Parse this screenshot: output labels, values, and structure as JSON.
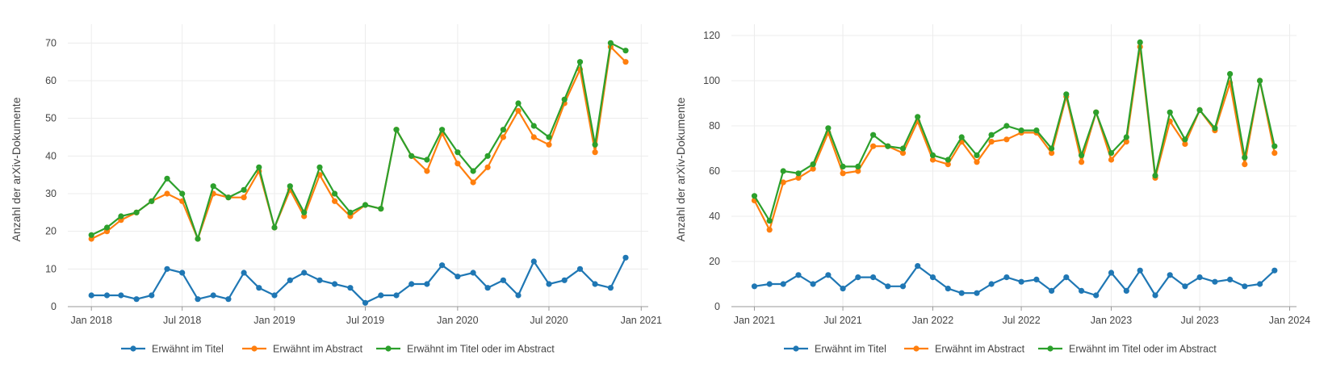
{
  "chart_data": [
    {
      "type": "line",
      "ylabel": "Anzahl der arXiv-Dokumente",
      "xlabel": "",
      "ylim": [
        0,
        75
      ],
      "yticks": [
        0,
        10,
        20,
        30,
        40,
        50,
        60,
        70
      ],
      "x_range": [
        "2017-11-15",
        "2021-01-15"
      ],
      "xtick_dates": [
        "2018-01-01",
        "2018-07-01",
        "2019-01-01",
        "2019-07-01",
        "2020-01-01",
        "2020-07-01",
        "2021-01-01"
      ],
      "xtick_labels": [
        "Jan 2018",
        "Jul 2018",
        "Jan 2019",
        "Jul 2019",
        "Jan 2020",
        "Jul 2020",
        "Jan 2021"
      ],
      "x": [
        "2018-01",
        "2018-02",
        "2018-03",
        "2018-04",
        "2018-05",
        "2018-06",
        "2018-07",
        "2018-08",
        "2018-09",
        "2018-10",
        "2018-11",
        "2018-12",
        "2019-01",
        "2019-02",
        "2019-03",
        "2019-04",
        "2019-05",
        "2019-06",
        "2019-07",
        "2019-08",
        "2019-09",
        "2019-10",
        "2019-11",
        "2019-12",
        "2020-01",
        "2020-02",
        "2020-03",
        "2020-04",
        "2020-05",
        "2020-06",
        "2020-07",
        "2020-08",
        "2020-09",
        "2020-10",
        "2020-11",
        "2020-12"
      ],
      "legend_position": "bottom",
      "grid": true,
      "series": [
        {
          "name": "Erwähnt im Titel",
          "color": "#1f77b4",
          "values": [
            3,
            3,
            3,
            2,
            3,
            10,
            9,
            2,
            3,
            2,
            9,
            5,
            3,
            7,
            9,
            7,
            6,
            5,
            1,
            3,
            3,
            6,
            6,
            11,
            8,
            9,
            5,
            7,
            3,
            12,
            6,
            7,
            10,
            6,
            5,
            13
          ]
        },
        {
          "name": "Erwähnt im Abstract",
          "color": "#ff7f0e",
          "values": [
            18,
            20,
            23,
            25,
            28,
            30,
            28,
            18,
            30,
            29,
            29,
            36,
            21,
            31,
            24,
            35,
            28,
            24,
            27,
            26,
            47,
            40,
            36,
            46,
            38,
            33,
            37,
            45,
            52,
            45,
            43,
            54,
            63,
            41,
            69,
            65
          ]
        },
        {
          "name": "Erwähnt im Titel oder im Abstract",
          "color": "#2ca02c",
          "values": [
            19,
            21,
            24,
            25,
            28,
            34,
            30,
            18,
            32,
            29,
            31,
            37,
            21,
            32,
            25,
            37,
            30,
            25,
            27,
            26,
            47,
            40,
            39,
            47,
            41,
            36,
            40,
            47,
            54,
            48,
            45,
            55,
            65,
            43,
            70,
            68
          ]
        }
      ]
    },
    {
      "type": "line",
      "ylabel": "Anzahl der arXiv-Dokumente",
      "xlabel": "",
      "ylim": [
        0,
        125
      ],
      "yticks": [
        0,
        20,
        40,
        60,
        80,
        100,
        120
      ],
      "x_range": [
        "2020-11-15",
        "2024-01-15"
      ],
      "xtick_dates": [
        "2021-01-01",
        "2021-07-01",
        "2022-01-01",
        "2022-07-01",
        "2023-01-01",
        "2023-07-01",
        "2024-01-01"
      ],
      "xtick_labels": [
        "Jan 2021",
        "Jul 2021",
        "Jan 2022",
        "Jul 2022",
        "Jan 2023",
        "Jul 2023",
        "Jan 2024"
      ],
      "x": [
        "2021-01",
        "2021-02",
        "2021-03",
        "2021-04",
        "2021-05",
        "2021-06",
        "2021-07",
        "2021-08",
        "2021-09",
        "2021-10",
        "2021-11",
        "2021-12",
        "2022-01",
        "2022-02",
        "2022-03",
        "2022-04",
        "2022-05",
        "2022-06",
        "2022-07",
        "2022-08",
        "2022-09",
        "2022-10",
        "2022-11",
        "2022-12",
        "2023-01",
        "2023-02",
        "2023-03",
        "2023-04",
        "2023-05",
        "2023-06",
        "2023-07",
        "2023-08",
        "2023-09",
        "2023-10",
        "2023-11",
        "2023-12"
      ],
      "legend_position": "bottom",
      "grid": true,
      "series": [
        {
          "name": "Erwähnt im Titel",
          "color": "#1f77b4",
          "values": [
            9,
            10,
            10,
            14,
            10,
            14,
            8,
            13,
            13,
            9,
            9,
            18,
            13,
            8,
            6,
            6,
            10,
            13,
            11,
            12,
            7,
            13,
            7,
            5,
            15,
            7,
            16,
            5,
            14,
            9,
            13,
            11,
            12,
            9,
            10,
            16
          ]
        },
        {
          "name": "Erwähnt im Abstract",
          "color": "#ff7f0e",
          "values": [
            47,
            34,
            55,
            57,
            61,
            77,
            59,
            60,
            71,
            71,
            68,
            82,
            65,
            63,
            73,
            64,
            73,
            74,
            77,
            77,
            68,
            93,
            64,
            86,
            65,
            73,
            115,
            57,
            82,
            72,
            87,
            78,
            99,
            63,
            100,
            68
          ]
        },
        {
          "name": "Erwähnt im Titel oder im Abstract",
          "color": "#2ca02c",
          "values": [
            49,
            38,
            60,
            59,
            63,
            79,
            62,
            62,
            76,
            71,
            70,
            84,
            67,
            65,
            75,
            67,
            76,
            80,
            78,
            78,
            70,
            94,
            67,
            86,
            68,
            75,
            117,
            58,
            86,
            74,
            87,
            79,
            103,
            66,
            100,
            71
          ]
        }
      ]
    }
  ]
}
